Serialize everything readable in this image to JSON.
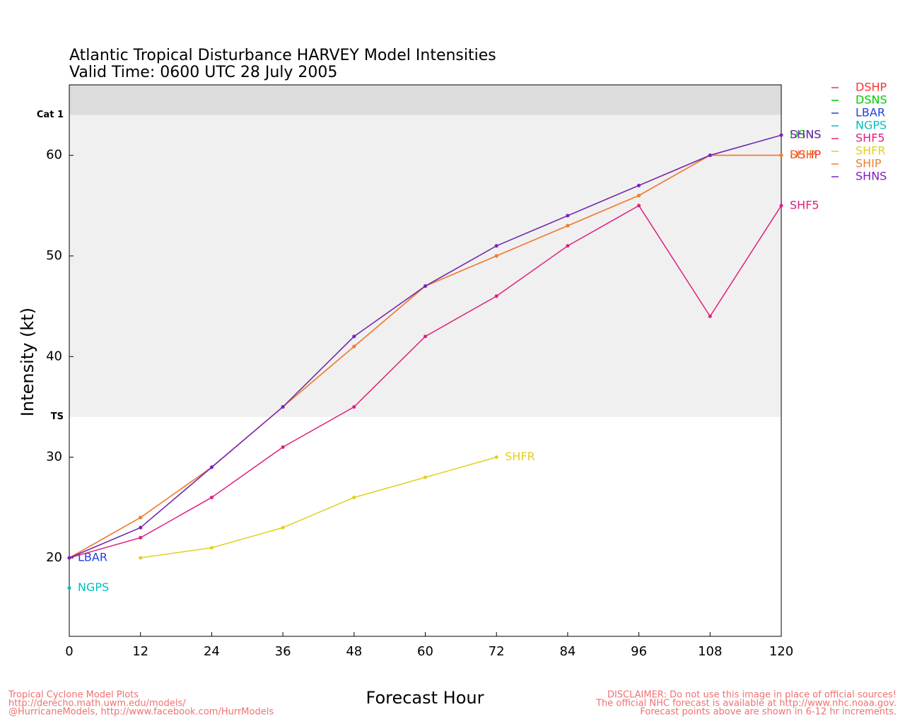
{
  "chart_data": {
    "type": "line",
    "title": "Atlantic Tropical Disturbance HARVEY Model Intensities",
    "subtitle": "Valid Time: 0600 UTC 28 July 2005",
    "x_label": "Forecast Hour",
    "y_label": "Intensity (kt)",
    "x": [
      0,
      12,
      24,
      36,
      48,
      60,
      72,
      84,
      96,
      108,
      120
    ],
    "xlim": [
      0,
      120
    ],
    "xticks": [
      0,
      12,
      24,
      36,
      48,
      60,
      72,
      84,
      96,
      108,
      120
    ],
    "ylim": [
      12.2,
      67
    ],
    "yticks": [
      20,
      30,
      40,
      50,
      60
    ],
    "bands": [
      {
        "value": 64,
        "label": "Cat 1",
        "color": "#dcdcdc"
      },
      {
        "value": 34,
        "label": "TS",
        "color": "#f0f0f0"
      }
    ],
    "legend": "top-right",
    "series": [
      {
        "name": "DSHP",
        "color": "#ff3030",
        "values": [
          20,
          24,
          29,
          35,
          41,
          47,
          50,
          53,
          56,
          60,
          60
        ]
      },
      {
        "name": "DSNS",
        "color": "#00cc00",
        "values": [
          20,
          23,
          29,
          35,
          42,
          47,
          51,
          54,
          57,
          60,
          62
        ]
      },
      {
        "name": "LBAR",
        "color": "#2040e0",
        "values": [
          20,
          null,
          null,
          null,
          null,
          null,
          null,
          null,
          null,
          null,
          null
        ]
      },
      {
        "name": "NGPS",
        "color": "#00c0c0",
        "values": [
          17,
          null,
          null,
          null,
          null,
          null,
          null,
          null,
          null,
          null,
          null
        ]
      },
      {
        "name": "SHF5",
        "color": "#e0207f",
        "values": [
          20,
          22,
          26,
          31,
          35,
          42,
          46,
          51,
          55,
          44,
          55
        ]
      },
      {
        "name": "SHFR",
        "color": "#e0d020",
        "values": [
          null,
          20,
          21,
          23,
          26,
          28,
          30,
          null,
          null,
          null,
          null
        ]
      },
      {
        "name": "SHIP",
        "color": "#f08030",
        "values": [
          20,
          24,
          29,
          35,
          41,
          47,
          50,
          53,
          56,
          60,
          60
        ]
      },
      {
        "name": "SHNS",
        "color": "#8020c0",
        "values": [
          20,
          23,
          29,
          35,
          42,
          47,
          51,
          54,
          57,
          60,
          62
        ]
      }
    ],
    "footer_left": [
      "Tropical Cyclone Model Plots",
      "http://derecho.math.uwm.edu/models/",
      "@HurricaneModels, http://www.facebook.com/HurrModels"
    ],
    "footer_right": [
      "DISCLAIMER: Do not use this image in place of official sources!",
      "The official NHC forecast is available at http://www.nhc.noaa.gov.",
      "Forecast points above are shown in 6-12 hr increments."
    ]
  }
}
